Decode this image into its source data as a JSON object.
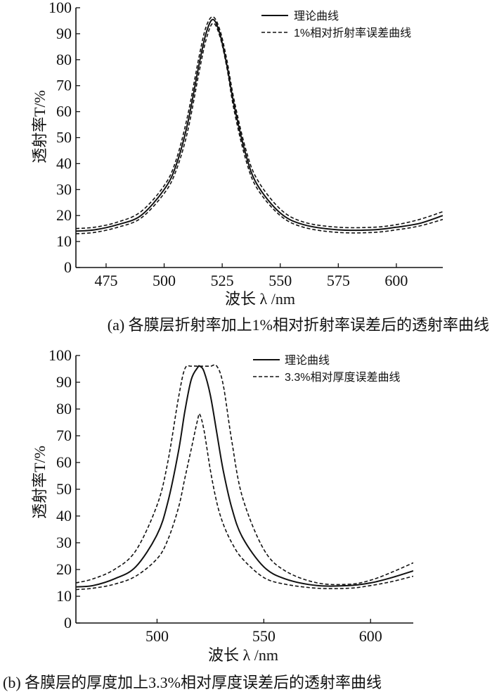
{
  "chart_data": [
    {
      "type": "line",
      "xlabel": "波长 λ /nm",
      "ylabel": "透射率T/%",
      "xlim": [
        462,
        620
      ],
      "ylim": [
        0,
        100
      ],
      "x_ticks": [
        475,
        500,
        525,
        550,
        575,
        600
      ],
      "y_ticks": [
        0,
        10,
        20,
        30,
        40,
        50,
        60,
        70,
        80,
        90,
        100
      ],
      "grid": false,
      "legend_position": "top-right",
      "caption": "(a) 各膜层折射率加上1%相对折射率误差后的透射率曲线",
      "legend": [
        "理论曲线",
        "1%相对折射率误差曲线"
      ],
      "x": [
        462,
        470,
        480,
        490,
        500,
        505,
        510,
        515,
        518,
        521,
        524,
        527,
        530,
        535,
        540,
        550,
        560,
        575,
        590,
        600,
        610,
        620
      ],
      "series": [
        {
          "name": "理论曲线",
          "style": "solid",
          "values": [
            14,
            14.5,
            16.5,
            20,
            30,
            39,
            55,
            78,
            90,
            95.5,
            90,
            78,
            63,
            44,
            32,
            21,
            16.5,
            14.5,
            14.5,
            15.5,
            17,
            20
          ]
        },
        {
          "name": "1%相对折射率误差曲线",
          "style": "dashed",
          "values": [
            15,
            15.5,
            17.5,
            21.5,
            31.5,
            41,
            58,
            81,
            92.5,
            96.5,
            91.5,
            80,
            65,
            46,
            34,
            22.5,
            17.5,
            15.5,
            15.5,
            16.5,
            18.5,
            21.5
          ]
        },
        {
          "name": "1%相对折射率误差曲线",
          "style": "dashed",
          "values": [
            13,
            13.5,
            15.5,
            19,
            28.5,
            37,
            52,
            75,
            87.5,
            94,
            89,
            77,
            61,
            42,
            30.5,
            20,
            15.5,
            13.5,
            13.5,
            14.5,
            16,
            18.5
          ]
        }
      ]
    },
    {
      "type": "line",
      "xlabel": "波长 λ /nm",
      "ylabel": "透射率T/%",
      "xlim": [
        462,
        620
      ],
      "ylim": [
        0,
        100
      ],
      "x_ticks": [
        500,
        550,
        600
      ],
      "y_ticks": [
        0,
        10,
        20,
        30,
        40,
        50,
        60,
        70,
        80,
        90,
        100
      ],
      "grid": false,
      "legend_position": "top-right",
      "caption": "(b) 各膜层的厚度加上3.3%相对厚度误差后的透射率曲线",
      "legend": [
        "理论曲线",
        "3.3%相对厚度误差曲线"
      ],
      "x": [
        462,
        470,
        480,
        490,
        500,
        505,
        510,
        513,
        516,
        519,
        520,
        522,
        525,
        528,
        531,
        535,
        540,
        550,
        560,
        575,
        590,
        600,
        610,
        620
      ],
      "series": [
        {
          "name": "理论曲线",
          "style": "solid",
          "values": [
            13.5,
            14,
            16.5,
            21,
            33,
            45,
            64,
            79,
            91,
            95.5,
            96,
            94,
            85,
            71,
            57,
            43,
            32,
            21,
            16.5,
            14,
            14,
            15,
            17,
            19.5
          ]
        },
        {
          "name": "3.3%相对厚度误差曲线",
          "style": "dashed",
          "values": [
            15,
            16.5,
            20,
            27,
            44,
            60,
            84,
            95,
            96,
            96,
            96,
            96,
            96,
            96,
            89,
            68,
            47,
            27.5,
            19.5,
            15,
            14.5,
            16,
            19,
            22.5
          ]
        },
        {
          "name": "3.3%相对厚度误差曲线",
          "style": "dashed",
          "values": [
            12.5,
            13,
            14.5,
            17.5,
            24,
            31,
            43,
            54,
            65,
            76,
            78,
            72,
            57,
            45,
            37,
            30,
            24,
            17,
            14.5,
            13,
            13,
            14,
            15.5,
            17.5
          ]
        }
      ]
    }
  ]
}
